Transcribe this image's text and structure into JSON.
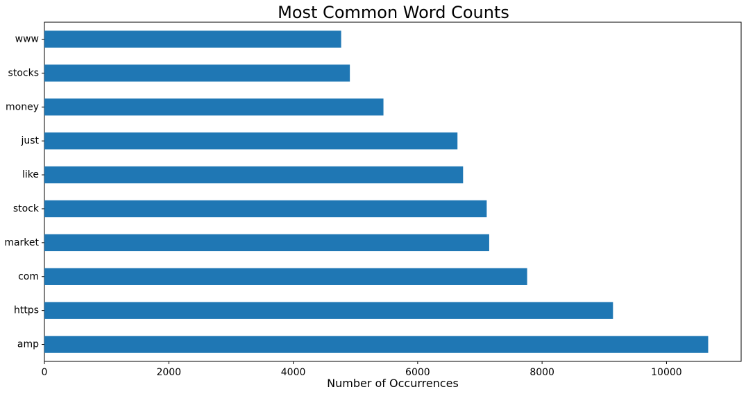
{
  "chart_data": {
    "type": "bar",
    "orientation": "horizontal",
    "title": "Most Common Word Counts",
    "xlabel": "Number of Occurrences",
    "ylabel": "",
    "categories": [
      "amp",
      "https",
      "com",
      "market",
      "stock",
      "like",
      "just",
      "money",
      "stocks",
      "www"
    ],
    "values": [
      10670,
      9140,
      7760,
      7150,
      7110,
      6730,
      6640,
      5450,
      4910,
      4770
    ],
    "xlim": [
      0,
      11200
    ],
    "xticks": [
      0,
      2000,
      4000,
      6000,
      8000,
      10000
    ],
    "bar_color": "#1f77b4",
    "grid": false,
    "legend": "none"
  }
}
